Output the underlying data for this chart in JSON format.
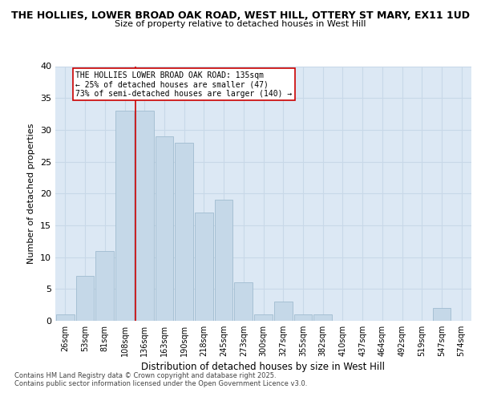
{
  "title_line1": "THE HOLLIES, LOWER BROAD OAK ROAD, WEST HILL, OTTERY ST MARY, EX11 1UD",
  "title_line2": "Size of property relative to detached houses in West Hill",
  "xlabel": "Distribution of detached houses by size in West Hill",
  "ylabel": "Number of detached properties",
  "categories": [
    "26sqm",
    "53sqm",
    "81sqm",
    "108sqm",
    "136sqm",
    "163sqm",
    "190sqm",
    "218sqm",
    "245sqm",
    "273sqm",
    "300sqm",
    "327sqm",
    "355sqm",
    "382sqm",
    "410sqm",
    "437sqm",
    "464sqm",
    "492sqm",
    "519sqm",
    "547sqm",
    "574sqm"
  ],
  "values": [
    1,
    7,
    11,
    33,
    33,
    29,
    28,
    17,
    19,
    6,
    1,
    3,
    1,
    1,
    0,
    0,
    0,
    0,
    0,
    2,
    0
  ],
  "bar_color": "#c5d8e8",
  "bar_edgecolor": "#a0bcd0",
  "grid_color": "#c8d8e8",
  "background_color": "#dce8f4",
  "annotation_box_text": "THE HOLLIES LOWER BROAD OAK ROAD: 135sqm\n← 25% of detached houses are smaller (47)\n73% of semi-detached houses are larger (140) →",
  "redline_bar_index": 4,
  "ylim": [
    0,
    40
  ],
  "yticks": [
    0,
    5,
    10,
    15,
    20,
    25,
    30,
    35,
    40
  ],
  "footer_line1": "Contains HM Land Registry data © Crown copyright and database right 2025.",
  "footer_line2": "Contains public sector information licensed under the Open Government Licence v3.0."
}
